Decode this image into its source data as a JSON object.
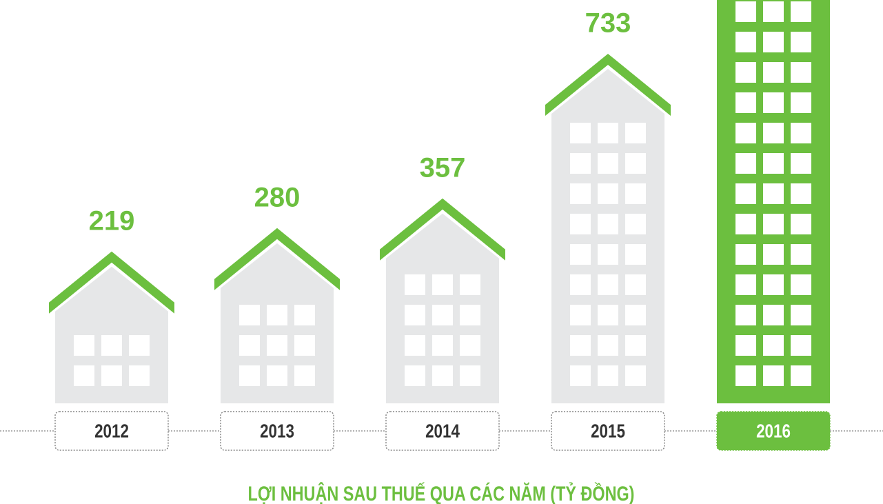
{
  "chart_data": {
    "type": "building",
    "title": "LỢI NHUẬN SAU THUẾ QUA CÁC NĂM (TỶ ĐỒNG)",
    "categories": [
      "2012",
      "2013",
      "2014",
      "2015",
      "2016"
    ],
    "values": [
      219,
      280,
      357,
      733,
      null
    ],
    "color": "#6cbf3f",
    "building_color": "#e6e7e8"
  }
}
